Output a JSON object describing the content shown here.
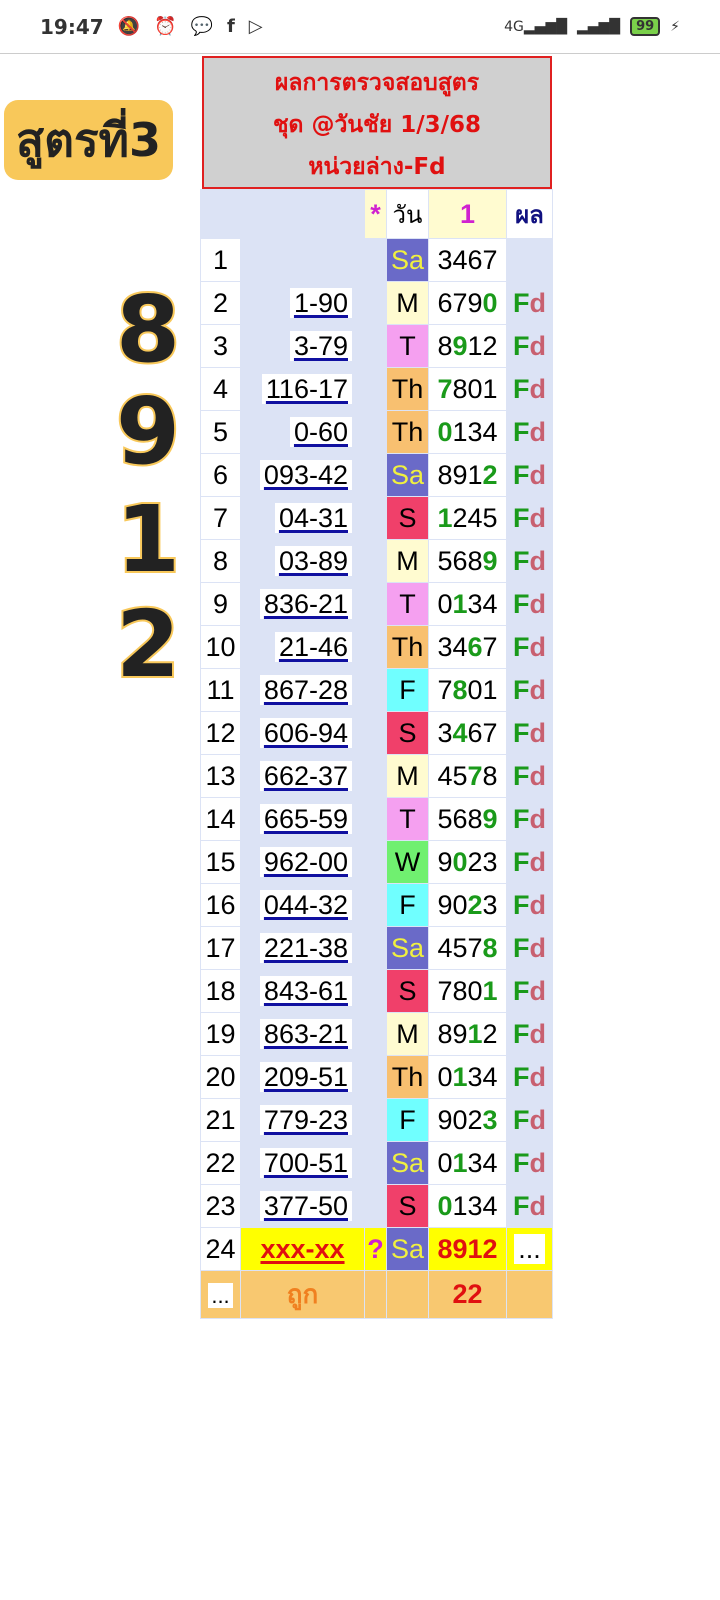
{
  "status": {
    "time": "19:47",
    "battery": "99",
    "network": "4G"
  },
  "title": {
    "line1": "ผลการตรวจสอบสูตร",
    "line2": "ชุด @วันชัย 1/3/68",
    "line3": "หน่วยล่าง-Fd"
  },
  "header": {
    "star": "*",
    "day": "วัน",
    "digit": "1",
    "result": "ผล"
  },
  "badge": "สูตรที่3",
  "big_digits": [
    "8",
    "9",
    "1",
    "2"
  ],
  "day_colors": {
    "Sa": "#6a6ac8",
    "M": "#fffbd0",
    "T": "#f5a0f0",
    "Th": "#f8c070",
    "S": "#f0406a",
    "F": "#70ffff",
    "W": "#70f070"
  },
  "rows": [
    {
      "n": "1",
      "code": "",
      "day": "Sa",
      "dig": "3467",
      "hl": -1,
      "res": ""
    },
    {
      "n": "2",
      "code": "1-90",
      "day": "M",
      "dig": "6790",
      "hl": 3,
      "res": "Fd"
    },
    {
      "n": "3",
      "code": "3-79",
      "day": "T",
      "dig": "8912",
      "hl": 1,
      "res": "Fd"
    },
    {
      "n": "4",
      "code": "116-17",
      "day": "Th",
      "dig": "7801",
      "hl": 0,
      "res": "Fd"
    },
    {
      "n": "5",
      "code": "0-60",
      "day": "Th",
      "dig": "0134",
      "hl": 0,
      "res": "Fd"
    },
    {
      "n": "6",
      "code": "093-42",
      "day": "Sa",
      "dig": "8912",
      "hl": 3,
      "res": "Fd"
    },
    {
      "n": "7",
      "code": "04-31",
      "day": "S",
      "dig": "1245",
      "hl": 0,
      "res": "Fd"
    },
    {
      "n": "8",
      "code": "03-89",
      "day": "M",
      "dig": "5689",
      "hl": 3,
      "res": "Fd"
    },
    {
      "n": "9",
      "code": "836-21",
      "day": "T",
      "dig": "0134",
      "hl": 1,
      "res": "Fd"
    },
    {
      "n": "10",
      "code": "21-46",
      "day": "Th",
      "dig": "3467",
      "hl": 2,
      "res": "Fd"
    },
    {
      "n": "11",
      "code": "867-28",
      "day": "F",
      "dig": "7801",
      "hl": 1,
      "res": "Fd"
    },
    {
      "n": "12",
      "code": "606-94",
      "day": "S",
      "dig": "3467",
      "hl": 1,
      "res": "Fd"
    },
    {
      "n": "13",
      "code": "662-37",
      "day": "M",
      "dig": "4578",
      "hl": 2,
      "res": "Fd"
    },
    {
      "n": "14",
      "code": "665-59",
      "day": "T",
      "dig": "5689",
      "hl": 3,
      "res": "Fd"
    },
    {
      "n": "15",
      "code": "962-00",
      "day": "W",
      "dig": "9023",
      "hl": 1,
      "res": "Fd"
    },
    {
      "n": "16",
      "code": "044-32",
      "day": "F",
      "dig": "9023",
      "hl": 2,
      "res": "Fd"
    },
    {
      "n": "17",
      "code": "221-38",
      "day": "Sa",
      "dig": "4578",
      "hl": 3,
      "res": "Fd"
    },
    {
      "n": "18",
      "code": "843-61",
      "day": "S",
      "dig": "7801",
      "hl": 3,
      "res": "Fd"
    },
    {
      "n": "19",
      "code": "863-21",
      "day": "M",
      "dig": "8912",
      "hl": 2,
      "res": "Fd"
    },
    {
      "n": "20",
      "code": "209-51",
      "day": "Th",
      "dig": "0134",
      "hl": 1,
      "res": "Fd"
    },
    {
      "n": "21",
      "code": "779-23",
      "day": "F",
      "dig": "9023",
      "hl": 3,
      "res": "Fd"
    },
    {
      "n": "22",
      "code": "700-51",
      "day": "Sa",
      "dig": "0134",
      "hl": 1,
      "res": "Fd"
    },
    {
      "n": "23",
      "code": "377-50",
      "day": "S",
      "dig": "0134",
      "hl": 0,
      "res": "Fd"
    }
  ],
  "pending": {
    "n": "24",
    "code": "xxx-xx",
    "mark": "?",
    "day": "Sa",
    "dig": "8912",
    "res": "..."
  },
  "footer": {
    "left": "...",
    "label": "ถูก",
    "count": "22"
  }
}
